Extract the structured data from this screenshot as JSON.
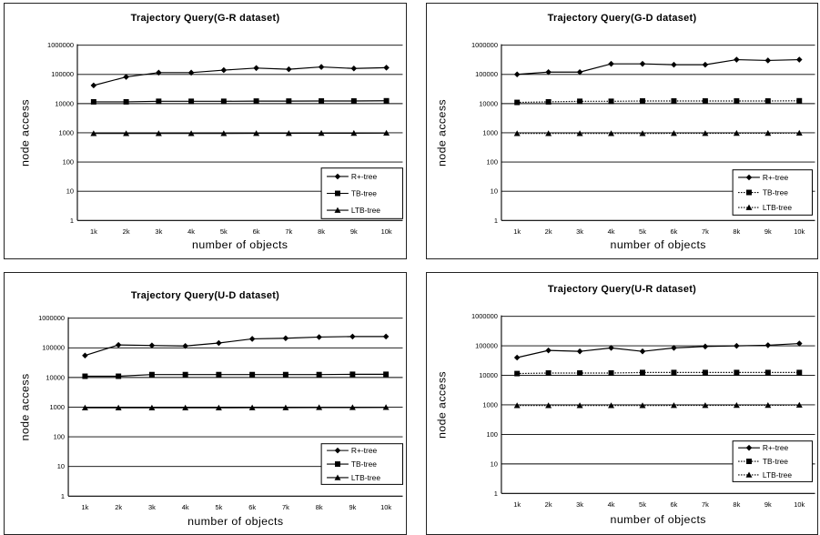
{
  "chart_data": [
    {
      "type": "line",
      "title": "Trajectory Query(G-R dataset)",
      "xlabel": "number of objects",
      "ylabel": "node access",
      "yscale": "log",
      "ylim": [
        1,
        1000000
      ],
      "yticks": [
        "1",
        "10",
        "100",
        "1000",
        "10000",
        "100000",
        "1000000"
      ],
      "categories": [
        "1k",
        "2k",
        "3k",
        "4k",
        "5k",
        "6k",
        "7k",
        "8k",
        "9k",
        "10k"
      ],
      "grid": "horizontal",
      "legend_position": "bottom-right",
      "series": [
        {
          "name": "R+-tree",
          "marker": "diamond",
          "line": "solid",
          "values": [
            42000,
            82000,
            115000,
            115000,
            140000,
            165000,
            150000,
            180000,
            160000,
            170000
          ]
        },
        {
          "name": "TB-tree",
          "marker": "square",
          "line": "solid",
          "values": [
            11500,
            11500,
            12000,
            12000,
            12000,
            12200,
            12200,
            12300,
            12300,
            12500
          ]
        },
        {
          "name": "LTB-tree",
          "marker": "triangle",
          "line": "solid",
          "values": [
            950,
            950,
            950,
            950,
            950,
            960,
            960,
            970,
            970,
            980
          ]
        }
      ]
    },
    {
      "type": "line",
      "title": "Trajectory Query(G-D dataset)",
      "xlabel": "number of objects",
      "ylabel": "node access",
      "yscale": "log",
      "ylim": [
        1,
        1000000
      ],
      "yticks": [
        "1",
        "10",
        "100",
        "1000",
        "10000",
        "100000",
        "1000000"
      ],
      "categories": [
        "1k",
        "2k",
        "3k",
        "4k",
        "5k",
        "6k",
        "7k",
        "8k",
        "9k",
        "10k"
      ],
      "grid": "horizontal",
      "legend_position": "bottom-right",
      "series": [
        {
          "name": "R+-tree",
          "marker": "diamond",
          "line": "solid",
          "values": [
            100000,
            120000,
            120000,
            230000,
            230000,
            215000,
            215000,
            320000,
            300000,
            320000
          ]
        },
        {
          "name": "TB-tree",
          "marker": "square",
          "line": "dotted",
          "values": [
            11000,
            11500,
            12000,
            12000,
            12300,
            12300,
            12300,
            12300,
            12300,
            12500
          ]
        },
        {
          "name": "LTB-tree",
          "marker": "triangle",
          "line": "dotted",
          "values": [
            950,
            950,
            950,
            950,
            950,
            960,
            960,
            970,
            970,
            980
          ]
        }
      ]
    },
    {
      "type": "line",
      "title": "Trajectory Query(U-D dataset)",
      "xlabel": "number of objects",
      "ylabel": "node access",
      "yscale": "log",
      "ylim": [
        1,
        1000000
      ],
      "yticks": [
        "1",
        "10",
        "100",
        "1000",
        "10000",
        "100000",
        "1000000"
      ],
      "categories": [
        "1k",
        "2k",
        "3k",
        "4k",
        "5k",
        "6k",
        "7k",
        "8k",
        "9k",
        "10k"
      ],
      "grid": "horizontal",
      "legend_position": "bottom-right",
      "series": [
        {
          "name": "R+-tree",
          "marker": "diamond",
          "line": "solid",
          "values": [
            55000,
            125000,
            120000,
            115000,
            145000,
            200000,
            210000,
            230000,
            240000,
            240000
          ]
        },
        {
          "name": "TB-tree",
          "marker": "square",
          "line": "solid",
          "values": [
            11000,
            11000,
            12500,
            12500,
            12500,
            12500,
            12500,
            12500,
            12800,
            12800
          ]
        },
        {
          "name": "LTB-tree",
          "marker": "triangle",
          "line": "solid",
          "values": [
            950,
            950,
            950,
            950,
            950,
            960,
            960,
            970,
            970,
            980
          ]
        }
      ]
    },
    {
      "type": "line",
      "title": "Trajectory Query(U-R dataset)",
      "xlabel": "number of objects",
      "ylabel": "node access",
      "yscale": "log",
      "ylim": [
        1,
        1000000
      ],
      "yticks": [
        "1",
        "10",
        "100",
        "1000",
        "10000",
        "100000",
        "1000000"
      ],
      "categories": [
        "1k",
        "2k",
        "3k",
        "4k",
        "5k",
        "6k",
        "7k",
        "8k",
        "9k",
        "10k"
      ],
      "grid": "horizontal",
      "legend_position": "bottom-right",
      "series": [
        {
          "name": "R+-tree",
          "marker": "diamond",
          "line": "solid",
          "values": [
            40000,
            70000,
            65000,
            85000,
            65000,
            85000,
            95000,
            100000,
            105000,
            120000
          ]
        },
        {
          "name": "TB-tree",
          "marker": "square",
          "line": "dotted",
          "values": [
            11500,
            12000,
            12000,
            12000,
            12500,
            12500,
            12500,
            12500,
            12500,
            12500
          ]
        },
        {
          "name": "LTB-tree",
          "marker": "triangle",
          "line": "dotted",
          "values": [
            950,
            950,
            950,
            950,
            950,
            960,
            960,
            970,
            970,
            980
          ]
        }
      ]
    }
  ]
}
